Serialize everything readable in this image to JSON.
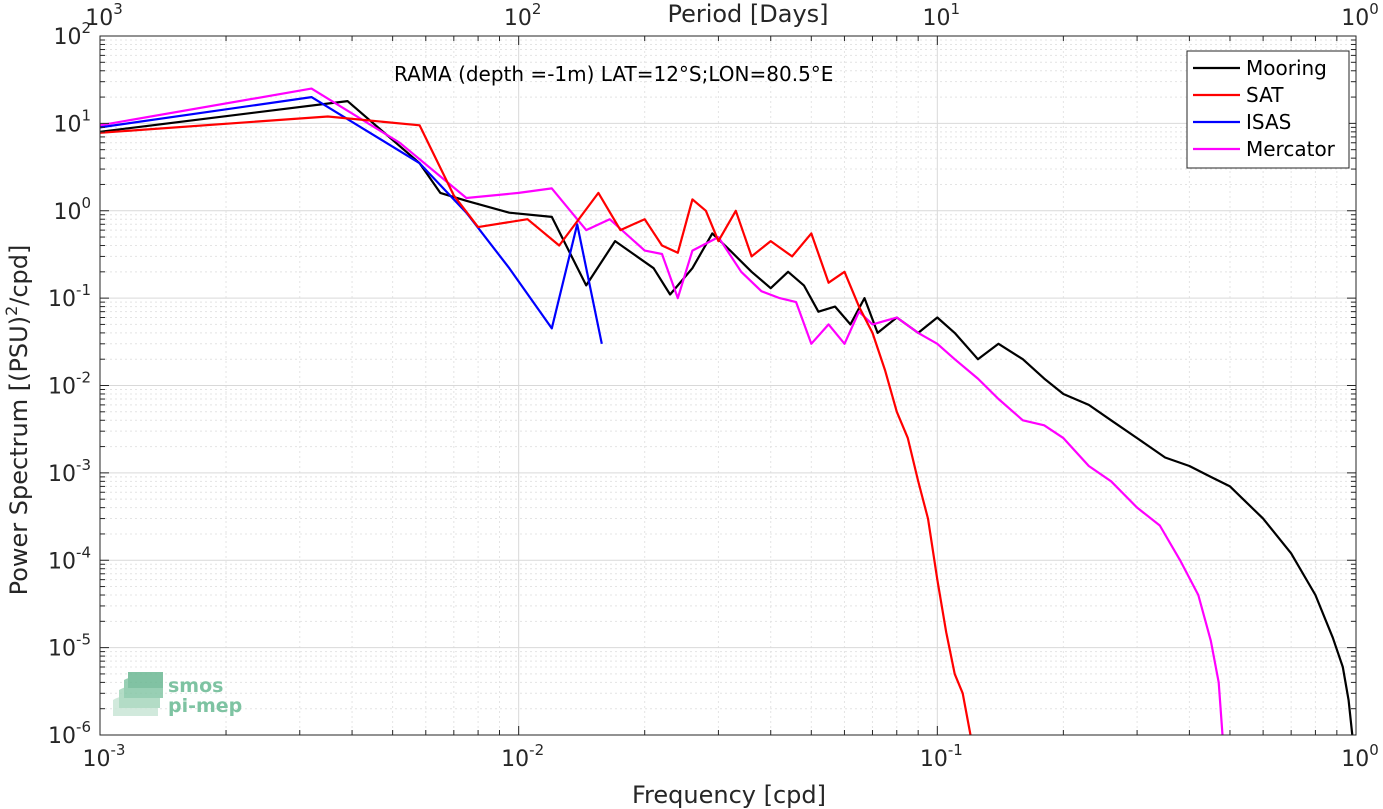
{
  "chart_data": {
    "type": "line",
    "title": "",
    "annotation": "RAMA (depth =-1m) LAT=12°S;LON=80.5°E",
    "xlabel": "Frequency [cpd]",
    "ylabel": "Power Spectrum [(PSU)",
    "ylabel_sup": "2",
    "ylabel_tail": "/cpd]",
    "top_xlabel": "Period [Days]",
    "x_scale": "log",
    "y_scale": "log",
    "xlim": [
      0.001,
      1
    ],
    "ylim": [
      1e-06,
      100
    ],
    "grid": true,
    "legend_position": "top-right",
    "x_ticks": [
      {
        "base": "10",
        "exp": "-3",
        "value": 0.001
      },
      {
        "base": "10",
        "exp": "-2",
        "value": 0.01
      },
      {
        "base": "10",
        "exp": "-1",
        "value": 0.1
      },
      {
        "base": "10",
        "exp": "0",
        "value": 1
      }
    ],
    "top_ticks": [
      {
        "base": "10",
        "exp": "3",
        "value": 0.001
      },
      {
        "base": "10",
        "exp": "2",
        "value": 0.01
      },
      {
        "base": "10",
        "exp": "1",
        "value": 0.1
      },
      {
        "base": "10",
        "exp": "0",
        "value": 1
      }
    ],
    "y_ticks": [
      {
        "base": "10",
        "exp": "-6",
        "value": 1e-06
      },
      {
        "base": "10",
        "exp": "-5",
        "value": 1e-05
      },
      {
        "base": "10",
        "exp": "-4",
        "value": 0.0001
      },
      {
        "base": "10",
        "exp": "-3",
        "value": 0.001
      },
      {
        "base": "10",
        "exp": "-2",
        "value": 0.01
      },
      {
        "base": "10",
        "exp": "-1",
        "value": 0.1
      },
      {
        "base": "10",
        "exp": "0",
        "value": 1
      },
      {
        "base": "10",
        "exp": "1",
        "value": 10
      },
      {
        "base": "10",
        "exp": "2",
        "value": 100
      }
    ],
    "series": [
      {
        "name": "Mooring",
        "color": "#000000",
        "points": [
          [
            0.001,
            8
          ],
          [
            0.0039,
            18
          ],
          [
            0.0058,
            3.5
          ],
          [
            0.0065,
            1.6
          ],
          [
            0.0075,
            1.3
          ],
          [
            0.0095,
            0.95
          ],
          [
            0.012,
            0.85
          ],
          [
            0.0145,
            0.14
          ],
          [
            0.017,
            0.45
          ],
          [
            0.021,
            0.22
          ],
          [
            0.023,
            0.11
          ],
          [
            0.026,
            0.22
          ],
          [
            0.029,
            0.55
          ],
          [
            0.032,
            0.35
          ],
          [
            0.036,
            0.2
          ],
          [
            0.04,
            0.13
          ],
          [
            0.044,
            0.2
          ],
          [
            0.048,
            0.14
          ],
          [
            0.052,
            0.07
          ],
          [
            0.057,
            0.08
          ],
          [
            0.062,
            0.05
          ],
          [
            0.067,
            0.1
          ],
          [
            0.072,
            0.04
          ],
          [
            0.08,
            0.06
          ],
          [
            0.09,
            0.04
          ],
          [
            0.1,
            0.06
          ],
          [
            0.11,
            0.04
          ],
          [
            0.125,
            0.02
          ],
          [
            0.14,
            0.03
          ],
          [
            0.16,
            0.02
          ],
          [
            0.18,
            0.012
          ],
          [
            0.2,
            0.008
          ],
          [
            0.23,
            0.006
          ],
          [
            0.26,
            0.004
          ],
          [
            0.3,
            0.0025
          ],
          [
            0.35,
            0.0015
          ],
          [
            0.4,
            0.0012
          ],
          [
            0.45,
            0.0009
          ],
          [
            0.5,
            0.0007
          ],
          [
            0.6,
            0.0003
          ],
          [
            0.7,
            0.00012
          ],
          [
            0.8,
            4e-05
          ],
          [
            0.88,
            1.3e-05
          ],
          [
            0.93,
            6e-06
          ],
          [
            0.96,
            2.5e-06
          ],
          [
            0.98,
            1e-06
          ]
        ]
      },
      {
        "name": "SAT",
        "color": "#ff0000",
        "points": [
          [
            0.001,
            7.8
          ],
          [
            0.0035,
            12
          ],
          [
            0.0058,
            9.5
          ],
          [
            0.007,
            1.5
          ],
          [
            0.008,
            0.65
          ],
          [
            0.0105,
            0.8
          ],
          [
            0.0125,
            0.4
          ],
          [
            0.0155,
            1.6
          ],
          [
            0.0175,
            0.6
          ],
          [
            0.02,
            0.8
          ],
          [
            0.022,
            0.4
          ],
          [
            0.024,
            0.33
          ],
          [
            0.026,
            1.35
          ],
          [
            0.028,
            1
          ],
          [
            0.03,
            0.45
          ],
          [
            0.033,
            1
          ],
          [
            0.036,
            0.3
          ],
          [
            0.04,
            0.45
          ],
          [
            0.045,
            0.3
          ],
          [
            0.05,
            0.55
          ],
          [
            0.055,
            0.15
          ],
          [
            0.06,
            0.2
          ],
          [
            0.065,
            0.08
          ],
          [
            0.07,
            0.04
          ],
          [
            0.075,
            0.015
          ],
          [
            0.08,
            0.005
          ],
          [
            0.085,
            0.0025
          ],
          [
            0.09,
            0.0008
          ],
          [
            0.095,
            0.0003
          ],
          [
            0.1,
            6e-05
          ],
          [
            0.105,
            1.5e-05
          ],
          [
            0.11,
            5e-06
          ],
          [
            0.115,
            3e-06
          ],
          [
            0.12,
            1e-06
          ]
        ]
      },
      {
        "name": "ISAS",
        "color": "#0000ff",
        "points": [
          [
            0.001,
            9
          ],
          [
            0.0032,
            20
          ],
          [
            0.0058,
            3.5
          ],
          [
            0.0075,
            0.95
          ],
          [
            0.0095,
            0.22
          ],
          [
            0.012,
            0.045
          ],
          [
            0.0138,
            0.7
          ],
          [
            0.0158,
            0.03
          ]
        ]
      },
      {
        "name": "Mercator",
        "color": "#ff00ff",
        "points": [
          [
            0.001,
            9.5
          ],
          [
            0.0032,
            25
          ],
          [
            0.0052,
            6
          ],
          [
            0.0075,
            1.4
          ],
          [
            0.01,
            1.6
          ],
          [
            0.012,
            1.8
          ],
          [
            0.0145,
            0.6
          ],
          [
            0.0165,
            0.8
          ],
          [
            0.02,
            0.35
          ],
          [
            0.022,
            0.32
          ],
          [
            0.024,
            0.1
          ],
          [
            0.026,
            0.35
          ],
          [
            0.03,
            0.5
          ],
          [
            0.034,
            0.2
          ],
          [
            0.038,
            0.12
          ],
          [
            0.042,
            0.1
          ],
          [
            0.046,
            0.09
          ],
          [
            0.05,
            0.03
          ],
          [
            0.055,
            0.05
          ],
          [
            0.06,
            0.03
          ],
          [
            0.065,
            0.07
          ],
          [
            0.07,
            0.05
          ],
          [
            0.08,
            0.06
          ],
          [
            0.09,
            0.04
          ],
          [
            0.1,
            0.03
          ],
          [
            0.11,
            0.02
          ],
          [
            0.125,
            0.012
          ],
          [
            0.14,
            0.007
          ],
          [
            0.16,
            0.004
          ],
          [
            0.18,
            0.0035
          ],
          [
            0.2,
            0.0025
          ],
          [
            0.23,
            0.0012
          ],
          [
            0.26,
            0.0008
          ],
          [
            0.3,
            0.0004
          ],
          [
            0.34,
            0.00025
          ],
          [
            0.38,
            0.0001
          ],
          [
            0.42,
            4e-05
          ],
          [
            0.45,
            1.2e-05
          ],
          [
            0.47,
            4e-06
          ],
          [
            0.48,
            1e-06
          ]
        ]
      }
    ]
  },
  "logo": {
    "line1": "smos",
    "line2": "pi-mep"
  }
}
